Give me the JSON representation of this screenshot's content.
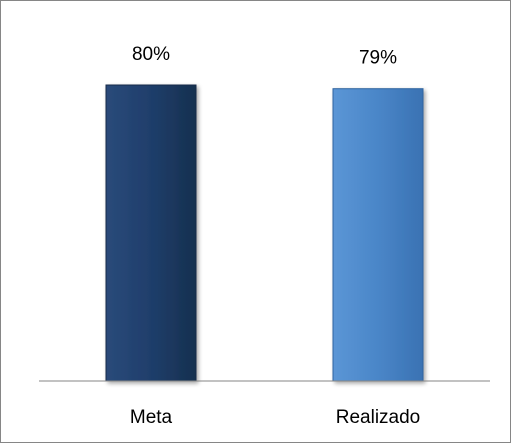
{
  "chart_data": {
    "type": "bar",
    "categories": [
      "Meta",
      "Realizado"
    ],
    "values": [
      80,
      79
    ],
    "data_labels": [
      "80%",
      "79%"
    ],
    "title": "",
    "xlabel": "",
    "ylabel": "",
    "grid": false,
    "legend": "none",
    "colors": [
      "#1f3e6b",
      "#4a86c8"
    ]
  }
}
